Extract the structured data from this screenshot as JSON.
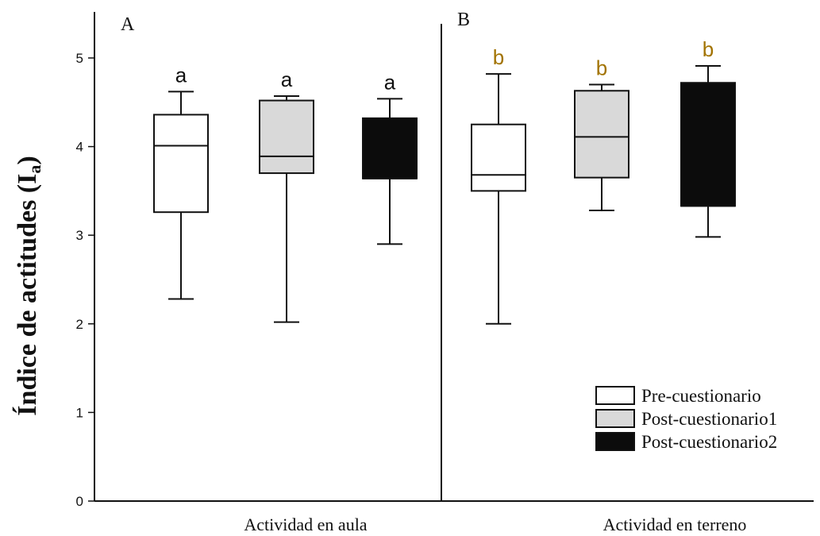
{
  "chart_data": {
    "type": "box",
    "ylabel": "Índice de actitudes (I",
    "ylabel_sub": "a",
    "ylabel_close": ")",
    "ylim": [
      0,
      5.5
    ],
    "yticks": [
      0,
      1,
      2,
      3,
      4,
      5
    ],
    "panels": [
      {
        "label": "A",
        "category": "Actividad en aula",
        "boxes": [
          {
            "series": "Pre-cuestionario",
            "min": 2.28,
            "q1": 3.26,
            "median": 4.01,
            "q3": 4.36,
            "max": 4.62,
            "sig": "a"
          },
          {
            "series": "Post-cuestionario1",
            "min": 2.02,
            "q1": 3.7,
            "median": 3.89,
            "q3": 4.52,
            "max": 4.57,
            "sig": "a"
          },
          {
            "series": "Post-cuestionario2",
            "min": 2.9,
            "q1": 3.64,
            "median": 3.64,
            "q3": 4.32,
            "max": 4.54,
            "sig": "a"
          }
        ]
      },
      {
        "label": "B",
        "category": "Actividad en terreno",
        "boxes": [
          {
            "series": "Pre-cuestionario",
            "min": 2.0,
            "q1": 3.5,
            "median": 3.68,
            "q3": 4.25,
            "max": 4.82,
            "sig": "b"
          },
          {
            "series": "Post-cuestionario1",
            "min": 3.28,
            "q1": 3.65,
            "median": 4.11,
            "q3": 4.63,
            "max": 4.7,
            "sig": "b"
          },
          {
            "series": "Post-cuestionario2",
            "min": 2.98,
            "q1": 3.33,
            "median": 3.33,
            "q3": 4.72,
            "max": 4.91,
            "sig": "b"
          }
        ]
      }
    ],
    "legend": [
      {
        "name": "Pre-cuestionario",
        "color": "#ffffff"
      },
      {
        "name": "Post-cuestionario1",
        "color": "#d9d9d9"
      },
      {
        "name": "Post-cuestionario2",
        "color": "#0c0c0c"
      }
    ],
    "legend_position": "bottom-right",
    "sig_colors": {
      "a": "#111111",
      "b": "#a27300"
    }
  }
}
